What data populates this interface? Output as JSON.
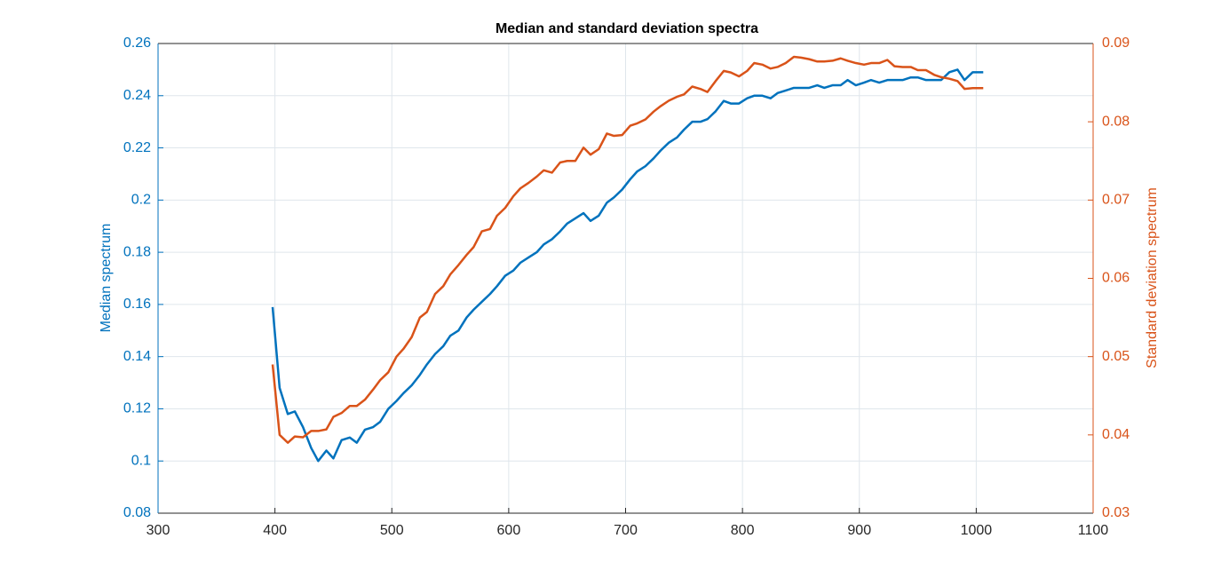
{
  "chart_data": {
    "type": "line",
    "title": "Median and standard deviation spectra",
    "y_label": "Median spectrum",
    "y2_label": "Standard deviation spectrum",
    "x": [
      398,
      404,
      411,
      417,
      424,
      431,
      437,
      444,
      450,
      457,
      464,
      470,
      477,
      484,
      490,
      497,
      504,
      510,
      517,
      524,
      530,
      537,
      544,
      550,
      557,
      564,
      570,
      577,
      584,
      590,
      597,
      604,
      610,
      617,
      624,
      630,
      637,
      644,
      650,
      657,
      664,
      670,
      677,
      684,
      690,
      697,
      704,
      710,
      717,
      724,
      730,
      737,
      744,
      750,
      757,
      764,
      770,
      777,
      784,
      790,
      797,
      804,
      810,
      817,
      824,
      830,
      837,
      844,
      850,
      857,
      864,
      870,
      877,
      884,
      890,
      897,
      904,
      910,
      917,
      924,
      930,
      937,
      944,
      950,
      957,
      964,
      970,
      977,
      984,
      990,
      997,
      1006
    ],
    "series": [
      {
        "name": "Median spectrum",
        "color": "#0072BD",
        "axis": "y",
        "values": [
          0.159,
          0.128,
          0.118,
          0.119,
          0.113,
          0.105,
          0.1,
          0.104,
          0.101,
          0.108,
          0.109,
          0.107,
          0.112,
          0.113,
          0.115,
          0.12,
          0.123,
          0.126,
          0.129,
          0.133,
          0.137,
          0.141,
          0.144,
          0.148,
          0.15,
          0.155,
          0.158,
          0.161,
          0.164,
          0.167,
          0.171,
          0.173,
          0.176,
          0.178,
          0.18,
          0.183,
          0.185,
          0.188,
          0.191,
          0.193,
          0.195,
          0.192,
          0.194,
          0.199,
          0.201,
          0.204,
          0.208,
          0.211,
          0.213,
          0.216,
          0.219,
          0.222,
          0.224,
          0.227,
          0.23,
          0.23,
          0.231,
          0.234,
          0.238,
          0.237,
          0.237,
          0.239,
          0.24,
          0.24,
          0.239,
          0.241,
          0.242,
          0.243,
          0.243,
          0.243,
          0.244,
          0.243,
          0.244,
          0.244,
          0.246,
          0.244,
          0.245,
          0.246,
          0.245,
          0.246,
          0.246,
          0.246,
          0.247,
          0.247,
          0.246,
          0.246,
          0.246,
          0.249,
          0.25,
          0.246,
          0.249,
          0.249
        ]
      },
      {
        "name": "Standard deviation spectrum",
        "color": "#D95319",
        "axis": "y2",
        "values": [
          0.049,
          0.04,
          0.039,
          0.0398,
          0.0397,
          0.0405,
          0.0405,
          0.0407,
          0.0423,
          0.0428,
          0.0437,
          0.0437,
          0.0445,
          0.0458,
          0.047,
          0.048,
          0.05,
          0.051,
          0.0525,
          0.055,
          0.0557,
          0.058,
          0.059,
          0.0605,
          0.0617,
          0.063,
          0.064,
          0.066,
          0.0663,
          0.068,
          0.069,
          0.0705,
          0.0715,
          0.0722,
          0.073,
          0.0738,
          0.0735,
          0.0748,
          0.075,
          0.075,
          0.0767,
          0.0758,
          0.0765,
          0.0785,
          0.0782,
          0.0783,
          0.0795,
          0.0798,
          0.0803,
          0.0813,
          0.082,
          0.0827,
          0.0832,
          0.0835,
          0.0845,
          0.0842,
          0.0838,
          0.0852,
          0.0865,
          0.0863,
          0.0858,
          0.0865,
          0.0875,
          0.0873,
          0.0868,
          0.087,
          0.0875,
          0.0883,
          0.0882,
          0.088,
          0.0877,
          0.0877,
          0.0878,
          0.0881,
          0.0878,
          0.0875,
          0.0873,
          0.0875,
          0.0875,
          0.0879,
          0.0871,
          0.087,
          0.087,
          0.0866,
          0.0866,
          0.086,
          0.0857,
          0.0855,
          0.0852,
          0.0842,
          0.0843,
          0.0843
        ]
      }
    ],
    "xlim": [
      300,
      1100
    ],
    "xticks": [
      300,
      400,
      500,
      600,
      700,
      800,
      900,
      1000,
      1100
    ],
    "ylim": [
      0.08,
      0.26
    ],
    "yticks": [
      0.08,
      0.1,
      0.12,
      0.14,
      0.16,
      0.18,
      0.2,
      0.22,
      0.24,
      0.26
    ],
    "y2lim": [
      0.03,
      0.09
    ],
    "y2ticks": [
      0.03,
      0.04,
      0.05,
      0.06,
      0.07,
      0.08,
      0.09
    ],
    "grid": true
  }
}
